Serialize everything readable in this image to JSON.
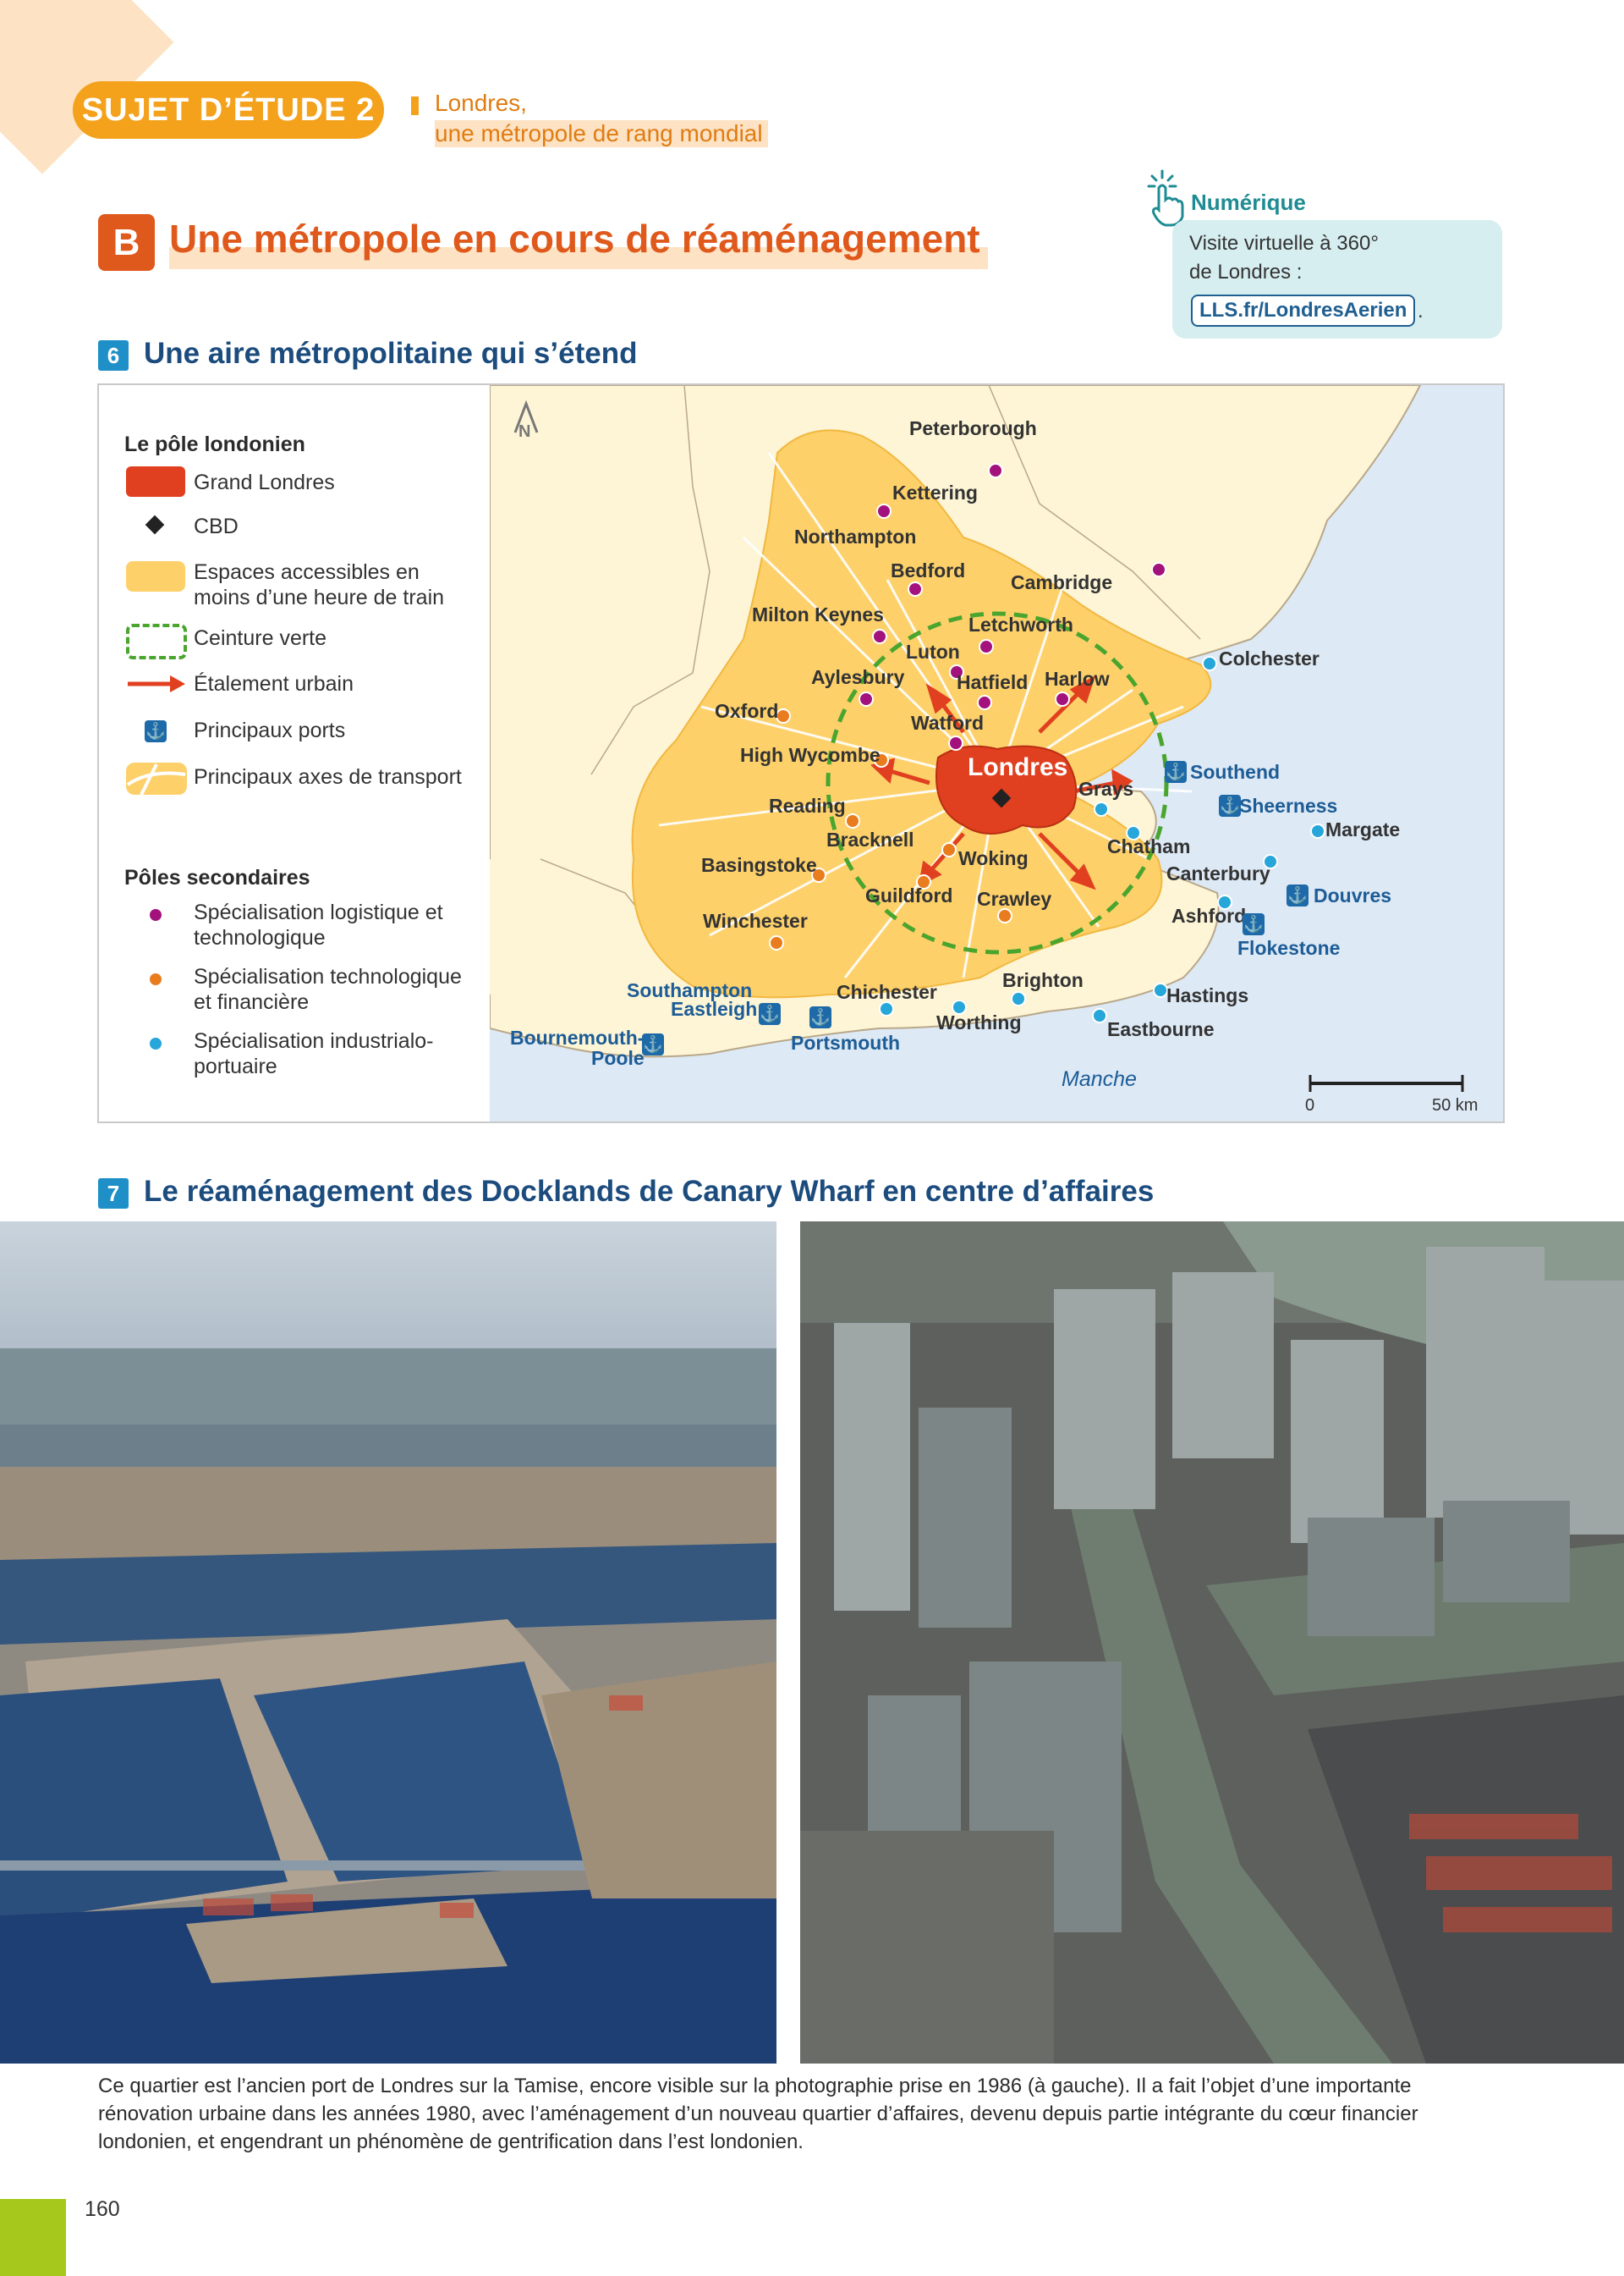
{
  "header": {
    "pill": "SUJET D’ÉTUDE 2",
    "sub_line1": "Londres,",
    "sub_line2": "une métropole de rang mondial"
  },
  "section": {
    "letter": "B",
    "title": "Une métropole en cours de réaménagement"
  },
  "numerique": {
    "label": "Numérique",
    "line1": "Visite virtuelle à 360°",
    "line2": "de Londres :",
    "link": "LLS.fr/LondresAerien",
    "link_suffix": "."
  },
  "doc6": {
    "num": "6",
    "title": "Une aire métropolitaine qui s’étend"
  },
  "legend": {
    "pole_title": "Le pôle londonien",
    "grand_londres": "Grand Londres",
    "cbd": "CBD",
    "espaces": "Espaces accessibles en moins d’une heure de train",
    "ceinture": "Ceinture verte",
    "etalement": "Étalement urbain",
    "ports": "Principaux ports",
    "axes": "Principaux axes de transport",
    "poles_title": "Pôles secondaires",
    "spec_logistique": "Spécialisation logistique et technologique",
    "spec_techno": "Spécialisation technologique et financière",
    "spec_industrialo": "Spécialisation industrialo-portuaire"
  },
  "map": {
    "north": "N",
    "london": "Londres",
    "sea": "Manche",
    "scale_0": "0",
    "scale_50": "50 km",
    "cities": {
      "peterborough": "Peterborough",
      "kettering": "Kettering",
      "northampton": "Northampton",
      "bedford": "Bedford",
      "cambridge": "Cambridge",
      "milton_keynes": "Milton Keynes",
      "letchworth": "Letchworth",
      "luton": "Luton",
      "aylesbury": "Aylesbury",
      "hatfield": "Hatfield",
      "harlow": "Harlow",
      "colchester": "Colchester",
      "oxford": "Oxford",
      "watford": "Watford",
      "high_wycombe": "High Wycombe",
      "southend": "Southend",
      "reading": "Reading",
      "grays": "Grays",
      "sheerness": "Sheerness",
      "margate": "Margate",
      "bracknell": "Bracknell",
      "chatham": "Chatham",
      "basingstoke": "Basingstoke",
      "woking": "Woking",
      "canterbury": "Canterbury",
      "guildford": "Guildford",
      "crawley": "Crawley",
      "douvres": "Douvres",
      "winchester": "Winchester",
      "ashford": "Ashford",
      "flokestone": "Flokestone",
      "southampton": "Southampton",
      "eastleigh": "Eastleigh",
      "chichester": "Chichester",
      "brighton": "Brighton",
      "hastings": "Hastings",
      "bournemouth": "Bournemouth-",
      "poole": "Poole",
      "portsmouth": "Portsmouth",
      "worthing": "Worthing",
      "eastbourne": "Eastbourne"
    }
  },
  "doc7": {
    "num": "7",
    "title": "Le réaménagement des Docklands de Canary Wharf en centre d’affaires"
  },
  "caption": "Ce quartier est l’ancien port de Londres sur la Tamise, encore visible sur la photographie prise en 1986 (à gauche). Il a fait l’objet d’une importante rénovation urbaine dans les années 1980, avec l’aménagement d’un nouveau quartier d’affaires, devenu depuis partie intégrante du cœur financier londonien, et engendrant un phénomène de gentrification dans l’est londonien.",
  "page_number": "160",
  "colors": {
    "orange_pill": "#f4a11c",
    "section_orange": "#e0591c",
    "doc_blue": "#1e8fc7",
    "title_navy": "#1c4c7d",
    "teal": "#1f8b93",
    "grand_londres": "#e0401f",
    "accessible": "#fdd06a",
    "green_belt": "#4aa52e",
    "sprawl_arrow": "#e0401f",
    "port_blue": "#1e6aa8",
    "pole_purple": "#a3127c",
    "pole_orange": "#e97d1e",
    "pole_cyan": "#26a6d9",
    "page_green": "#a6c81c"
  }
}
